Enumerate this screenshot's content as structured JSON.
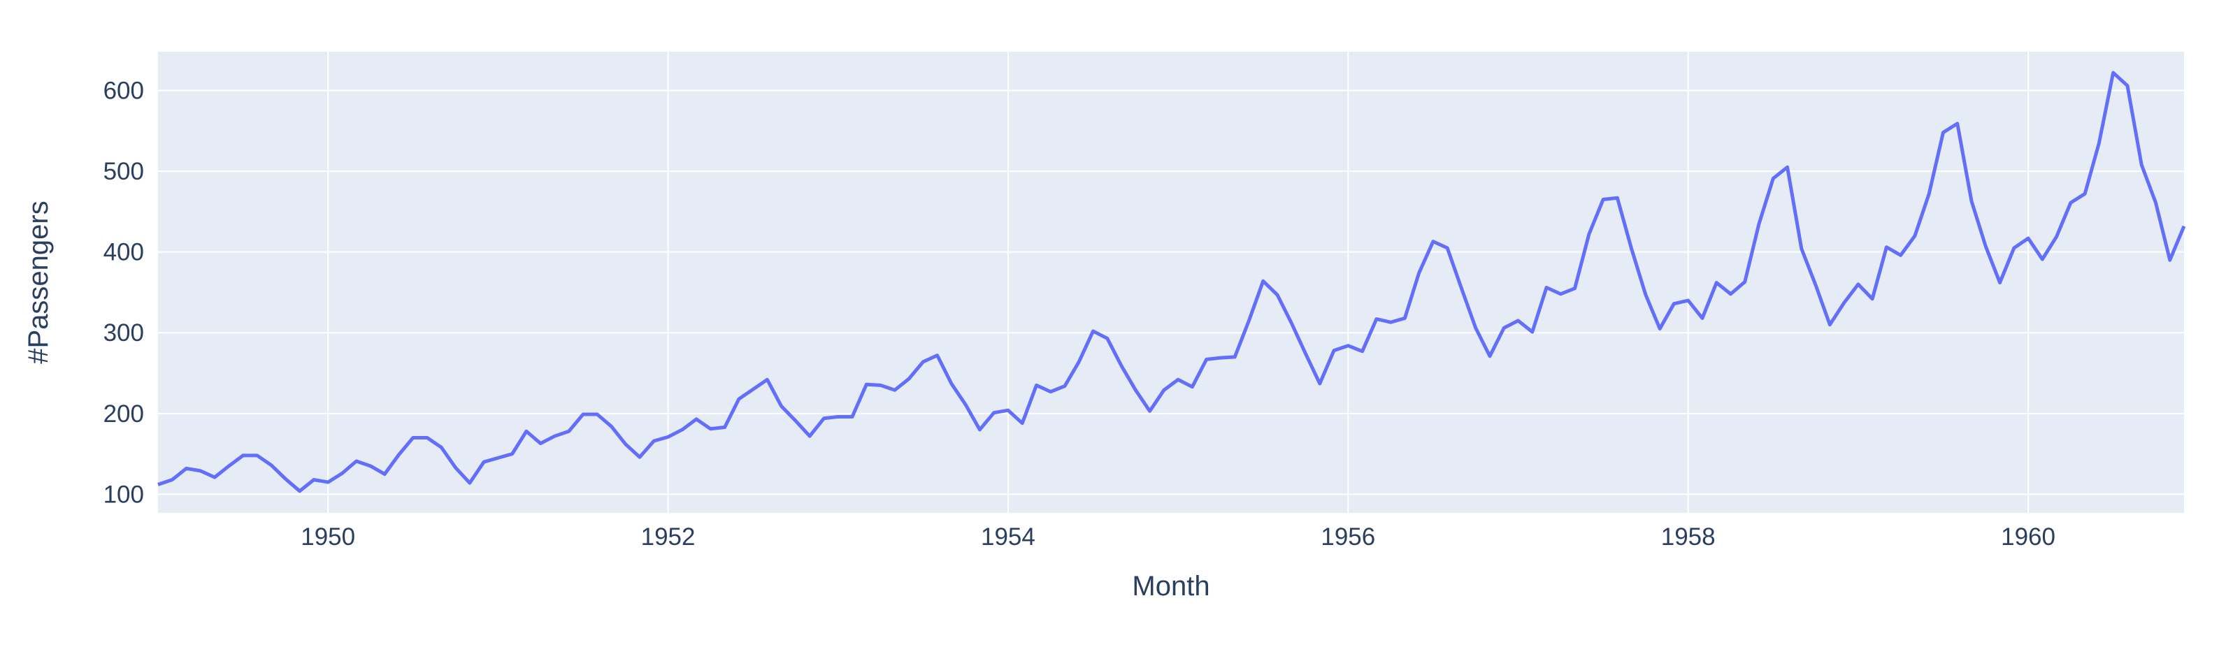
{
  "chart_data": {
    "type": "line",
    "title": "",
    "xlabel": "Month",
    "ylabel": "#Passengers",
    "x_start": "1949-01",
    "x_end": "1960-12",
    "x_interval": "monthly",
    "xlim": [
      "1949-01",
      "1960-12"
    ],
    "ylim": [
      77,
      648
    ],
    "x_ticks": [
      "1950-01",
      "1952-01",
      "1954-01",
      "1956-01",
      "1958-01",
      "1960-01"
    ],
    "x_tick_labels": [
      "1950",
      "1952",
      "1954",
      "1956",
      "1958",
      "1960"
    ],
    "y_ticks": [
      100,
      200,
      300,
      400,
      500,
      600
    ],
    "y_tick_labels": [
      "100",
      "200",
      "300",
      "400",
      "500",
      "600"
    ],
    "grid": true,
    "legend": "none",
    "colors": {
      "plot_background": "#E5ECF6",
      "grid": "#ffffff",
      "line": "#636EFA",
      "text": "#2a3f5f"
    },
    "series": [
      {
        "values": [
          112,
          118,
          132,
          129,
          121,
          135,
          148,
          148,
          136,
          119,
          104,
          118,
          115,
          126,
          141,
          135,
          125,
          149,
          170,
          170,
          158,
          133,
          114,
          140,
          145,
          150,
          178,
          163,
          172,
          178,
          199,
          199,
          184,
          162,
          146,
          166,
          171,
          180,
          193,
          181,
          183,
          218,
          230,
          242,
          209,
          191,
          172,
          194,
          196,
          196,
          236,
          235,
          229,
          243,
          264,
          272,
          237,
          211,
          180,
          201,
          204,
          188,
          235,
          227,
          234,
          264,
          302,
          293,
          259,
          229,
          203,
          229,
          242,
          233,
          267,
          269,
          270,
          315,
          364,
          347,
          312,
          274,
          237,
          278,
          284,
          277,
          317,
          313,
          318,
          374,
          413,
          405,
          355,
          306,
          271,
          306,
          315,
          301,
          356,
          348,
          355,
          422,
          465,
          467,
          404,
          347,
          305,
          336,
          340,
          318,
          362,
          348,
          363,
          435,
          491,
          505,
          404,
          359,
          310,
          337,
          360,
          342,
          406,
          396,
          420,
          472,
          548,
          559,
          463,
          407,
          362,
          405,
          417,
          391,
          419,
          461,
          472,
          535,
          622,
          606,
          508,
          461,
          390,
          432
        ]
      }
    ]
  }
}
